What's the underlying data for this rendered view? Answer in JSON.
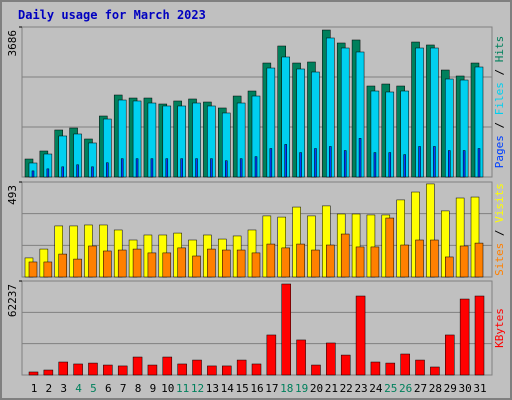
{
  "chart_data": [
    {
      "type": "bar",
      "title": "Daily usage for March 2023",
      "ylim": [
        0,
        3686
      ],
      "yticks": [
        3686
      ],
      "series": [
        {
          "name": "Hits",
          "color": "#00805c",
          "values": [
            442,
            639,
            1155,
            1204,
            934,
            1499,
            2015,
            1941,
            1941,
            1794,
            1868,
            1917,
            1843,
            1696,
            1990,
            2113,
            2801,
            3219,
            2801,
            2826,
            3612,
            3293,
            3367,
            2236,
            2285,
            2236,
            3317,
            3244,
            2629,
            2482,
            2801
          ]
        },
        {
          "name": "Files",
          "color": "#00d0f0",
          "values": [
            344,
            565,
            1008,
            1057,
            836,
            1425,
            1892,
            1868,
            1818,
            1745,
            1745,
            1818,
            1745,
            1573,
            1818,
            1990,
            2678,
            2949,
            2654,
            2580,
            3416,
            3170,
            3072,
            2113,
            2089,
            2113,
            3170,
            3170,
            2408,
            2383,
            2703
          ]
        },
        {
          "name": "Pages",
          "color": "#0040ff",
          "values": [
            150,
            200,
            250,
            300,
            250,
            350,
            450,
            450,
            450,
            450,
            450,
            450,
            450,
            400,
            450,
            500,
            700,
            800,
            600,
            700,
            750,
            650,
            950,
            600,
            600,
            550,
            750,
            750,
            650,
            650,
            700
          ]
        }
      ]
    },
    {
      "type": "bar",
      "ylim": [
        0,
        493
      ],
      "yticks": [
        493
      ],
      "series": [
        {
          "name": "Visits",
          "color": "#ffff00",
          "values": [
            99,
            145,
            265,
            265,
            270,
            270,
            244,
            192,
            218,
            218,
            228,
            192,
            218,
            197,
            213,
            244,
            317,
            311,
            363,
            317,
            369,
            327,
            327,
            322,
            322,
            400,
            441,
            483,
            343,
            410,
            415
          ]
        },
        {
          "name": "Sites",
          "color": "#ff8000",
          "values": [
            78,
            78,
            119,
            93,
            161,
            135,
            140,
            145,
            125,
            125,
            151,
            109,
            145,
            140,
            140,
            125,
            171,
            151,
            171,
            140,
            166,
            223,
            156,
            156,
            306,
            166,
            192,
            192,
            104,
            161,
            176
          ]
        }
      ]
    },
    {
      "type": "bar",
      "ylim": [
        0,
        62237
      ],
      "yticks": [
        62237
      ],
      "categories": [
        "1",
        "2",
        "3",
        "4",
        "5",
        "6",
        "7",
        "8",
        "9",
        "10",
        "11",
        "12",
        "13",
        "14",
        "15",
        "16",
        "17",
        "18",
        "19",
        "20",
        "21",
        "22",
        "23",
        "24",
        "25",
        "26",
        "27",
        "28",
        "29",
        "30",
        "31"
      ],
      "weekend_color": "#00805c",
      "weekends": [
        4,
        5,
        11,
        12,
        18,
        19,
        25,
        26
      ],
      "series": [
        {
          "name": "KBytes",
          "color": "#ff0000",
          "values": [
            2000,
            3300,
            8600,
            7300,
            7900,
            6600,
            6000,
            11900,
            6600,
            11900,
            7300,
            9900,
            6000,
            6000,
            9900,
            7300,
            26500,
            60250,
            23200,
            6600,
            21200,
            13200,
            52300,
            8600,
            7900,
            13900,
            9900,
            5300,
            26500,
            50300,
            52300
          ]
        }
      ]
    }
  ]
}
